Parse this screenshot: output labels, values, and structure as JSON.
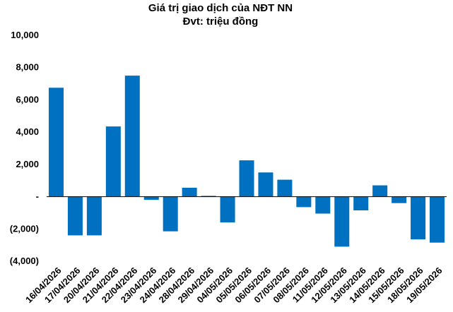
{
  "chart_data": {
    "type": "bar",
    "title": "Giá trị giao dịch của NĐT NN",
    "subtitle": "Đvt: triệu đồng",
    "xlabel": "",
    "ylabel": "",
    "ylim": [
      -4000,
      10000
    ],
    "yticks": [
      10000,
      8000,
      6000,
      4000,
      2000,
      0,
      -2000,
      -4000
    ],
    "ytick_labels": [
      "10,000",
      "8,000",
      "6,000",
      "4,000",
      "2,000",
      "-",
      "(2,000)",
      "(4,000)"
    ],
    "grid": false,
    "legend": "none",
    "bar_color": "#0070C0",
    "categories": [
      "16/04/2026",
      "17/04/2026",
      "20/04/2026",
      "21/04/2026",
      "22/04/2026",
      "23/04/2026",
      "24/04/2026",
      "28/04/2026",
      "29/04/2026",
      "04/05/2026",
      "05/05/2026",
      "06/05/2026",
      "07/05/2026",
      "08/05/2026",
      "11/05/2026",
      "12/05/2026",
      "13/05/2026",
      "14/05/2026",
      "15/05/2026",
      "18/05/2026",
      "19/05/2026"
    ],
    "values": [
      6750,
      -2400,
      -2400,
      4350,
      7500,
      -200,
      -2150,
      550,
      50,
      -1600,
      2250,
      1500,
      1050,
      -650,
      -1050,
      -3100,
      -850,
      700,
      -400,
      -2650,
      -2850
    ]
  }
}
